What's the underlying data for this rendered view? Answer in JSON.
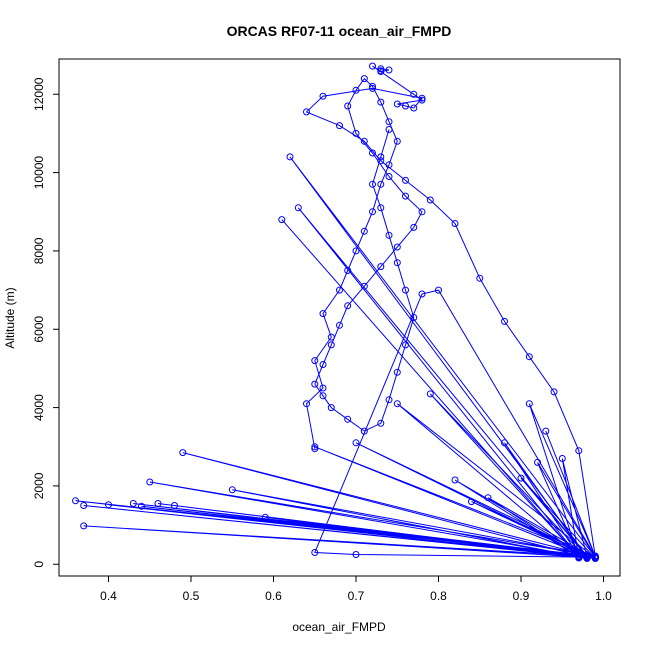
{
  "chart_data": {
    "type": "scatter",
    "title": "ORCAS RF07-11 ocean_air_FMPD",
    "xlabel": "ocean_air_FMPD",
    "ylabel": "Altitude (m)",
    "xlim": [
      0.34,
      1.02
    ],
    "ylim": [
      -300,
      12900
    ],
    "x_ticks": [
      "0.4",
      "0.5",
      "0.6",
      "0.7",
      "0.8",
      "0.9",
      "1.0"
    ],
    "y_ticks": [
      "0",
      "2000",
      "4000",
      "6000",
      "8000",
      "10000",
      "12000"
    ],
    "point_style": "open-circle",
    "line_connected": true,
    "grid": false,
    "legend": "none",
    "color": "#0000ff",
    "series": [
      {
        "x": [
          0.99,
          0.36,
          0.99,
          0.43,
          0.98,
          0.37,
          0.99,
          0.4,
          0.98,
          0.44,
          0.99,
          0.46,
          0.98,
          0.48,
          0.99,
          0.37,
          0.99,
          0.59,
          0.98,
          0.55,
          0.99,
          0.45,
          0.98,
          0.49,
          0.99,
          0.65,
          0.98,
          0.7,
          0.99,
          0.75,
          0.97,
          0.79,
          0.98,
          0.88,
          0.97,
          0.92,
          0.99,
          0.84,
          0.98,
          0.82,
          0.97,
          0.86,
          0.99,
          0.9,
          0.98,
          0.95,
          0.97,
          0.91,
          0.99,
          0.93
        ],
        "y": [
          150,
          1620,
          200,
          1550,
          180,
          1500,
          150,
          1520,
          220,
          1480,
          170,
          1550,
          200,
          1500,
          160,
          980,
          190,
          1200,
          150,
          1900,
          210,
          2100,
          170,
          2850,
          180,
          3000,
          200,
          3100,
          160,
          4100,
          190,
          4350,
          150,
          3100,
          210,
          2600,
          170,
          1600,
          200,
          2150,
          180,
          1700,
          150,
          2200,
          190,
          2700,
          160,
          4100,
          200,
          3400
        ]
      },
      {
        "x": [
          0.65,
          0.64,
          0.66,
          0.65,
          0.67,
          0.66,
          0.68,
          0.69,
          0.7,
          0.71,
          0.72,
          0.73,
          0.74,
          0.75,
          0.74,
          0.73,
          0.72,
          0.71,
          0.7,
          0.69,
          0.7,
          0.72,
          0.74,
          0.76,
          0.78,
          0.77,
          0.75,
          0.73,
          0.71,
          0.69,
          0.68,
          0.67,
          0.66,
          0.65,
          0.66,
          0.67,
          0.69,
          0.71,
          0.73,
          0.74,
          0.75,
          0.76,
          0.77,
          0.76,
          0.75,
          0.74,
          0.73,
          0.72,
          0.73,
          0.74
        ],
        "y": [
          2950,
          4100,
          4500,
          5200,
          5800,
          6400,
          7000,
          7500,
          8000,
          8500,
          9000,
          9700,
          10200,
          10800,
          11300,
          11800,
          12200,
          12400,
          12100,
          11700,
          11000,
          10500,
          9900,
          9400,
          9000,
          8600,
          8100,
          7600,
          7100,
          6600,
          6100,
          5600,
          5100,
          4600,
          4300,
          4000,
          3700,
          3400,
          3600,
          4200,
          4900,
          5600,
          6300,
          7000,
          7700,
          8400,
          9100,
          9700,
          10400,
          11100
        ]
      },
      {
        "x": [
          0.73,
          0.73,
          0.74,
          0.73,
          0.72,
          0.77,
          0.78,
          0.75,
          0.76,
          0.77,
          0.78,
          0.72,
          0.66,
          0.64,
          0.68,
          0.71,
          0.73,
          0.76,
          0.79,
          0.82,
          0.85,
          0.88,
          0.91,
          0.94,
          0.97,
          0.99,
          0.8,
          0.78,
          0.65,
          0.7,
          0.99,
          0.62,
          0.98,
          0.63,
          0.97,
          0.61
        ],
        "y": [
          12600,
          12650,
          12620,
          12580,
          12720,
          12000,
          11850,
          11750,
          11700,
          11650,
          11900,
          12150,
          11950,
          11550,
          11200,
          10800,
          10300,
          9800,
          9300,
          8700,
          7300,
          6200,
          5300,
          4400,
          2900,
          200,
          7000,
          6900,
          300,
          250,
          180,
          10400,
          200,
          9100,
          190,
          8800
        ]
      }
    ]
  }
}
